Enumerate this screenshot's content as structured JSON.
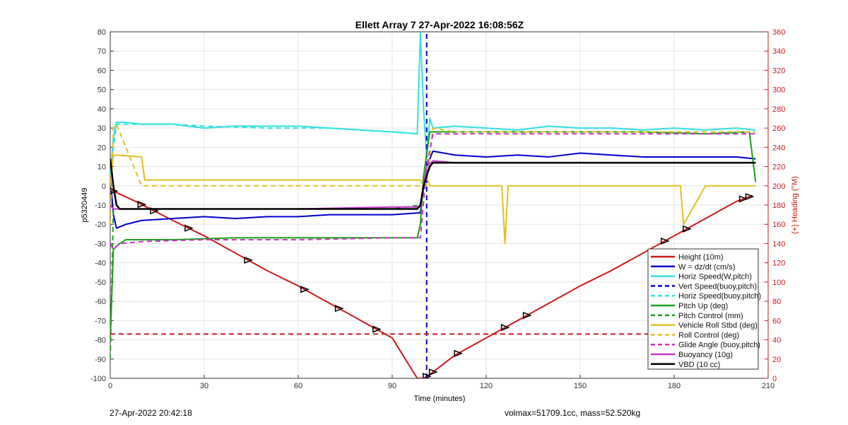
{
  "chart_data": {
    "type": "line",
    "title": "Ellett Array 7 27-Apr-2022 16:08:56Z",
    "xlabel": "Time (minutes)",
    "ylabel_left": "p5320449",
    "ylabel_right": "(+) Heading (°M)",
    "xlim": [
      0,
      210
    ],
    "ylim_left": [
      -100,
      80
    ],
    "ylim_right": [
      0,
      360
    ],
    "x_ticks": [
      "0",
      "30",
      "60",
      "90",
      "120",
      "150",
      "180",
      "210"
    ],
    "y_ticks_left": [
      "80",
      "70",
      "60",
      "50",
      "40",
      "30",
      "20",
      "10",
      "0",
      "-10",
      "-20",
      "-30",
      "-40",
      "-50",
      "-60",
      "-70",
      "-80",
      "-90",
      "-100"
    ],
    "y_ticks_right": [
      "360",
      "340",
      "320",
      "300",
      "280",
      "260",
      "240",
      "220",
      "200",
      "180",
      "160",
      "140",
      "120",
      "100",
      "80",
      "60",
      "40",
      "20",
      "0"
    ],
    "grid": true,
    "legend_position": "bottom-right",
    "series": [
      {
        "name": "Height (10m)",
        "color": "#cc1a1a",
        "style": "solid",
        "x": [
          0,
          8,
          20,
          30,
          40,
          50,
          60,
          70,
          80,
          90,
          98,
          100,
          102,
          110,
          120,
          130,
          140,
          150,
          160,
          170,
          180,
          190,
          200,
          205
        ],
        "y": [
          -2,
          -8,
          -18,
          -26,
          -35,
          -44,
          -52,
          -61,
          -70,
          -79,
          -100,
          -100,
          -98,
          -88,
          -79,
          -70,
          -61,
          -52,
          -44,
          -35,
          -26,
          -17,
          -8,
          -5
        ]
      },
      {
        "name": "W = dz/dt (cm/s)",
        "color": "#0000cc",
        "style": "solid",
        "x": [
          0,
          1,
          2,
          5,
          10,
          20,
          30,
          40,
          50,
          60,
          70,
          80,
          90,
          99,
          100,
          101,
          103,
          110,
          120,
          130,
          140,
          150,
          160,
          170,
          180,
          190,
          200,
          206
        ],
        "y": [
          5,
          -15,
          -22,
          -20,
          -18,
          -17,
          -16,
          -17,
          -16,
          -16,
          -15,
          -15,
          -15,
          -14,
          0,
          10,
          18,
          16,
          15,
          16,
          15,
          17,
          16,
          15,
          15,
          15,
          15,
          14
        ]
      },
      {
        "name": "Horiz Speed(W,pitch)",
        "color": "#33e0e0",
        "style": "solid",
        "x": [
          0,
          1,
          2,
          5,
          10,
          20,
          30,
          40,
          50,
          60,
          70,
          80,
          90,
          98,
          99,
          100,
          101,
          102,
          103,
          110,
          120,
          130,
          140,
          150,
          160,
          170,
          180,
          190,
          200,
          206
        ],
        "y": [
          5,
          25,
          33,
          33,
          32,
          32,
          30,
          31,
          31,
          31,
          30,
          29,
          28,
          27,
          80,
          40,
          15,
          35,
          30,
          31,
          30,
          29,
          31,
          30,
          30,
          29,
          30,
          29,
          30,
          29
        ]
      },
      {
        "name": "Vert Speed(buoy,pitch)",
        "color": "#0000cc",
        "style": "dashed",
        "x": [
          101,
          101
        ],
        "y": [
          -100,
          80
        ]
      },
      {
        "name": "Horiz Speed(buoy,pitch)",
        "color": "#33e0e0",
        "style": "dashed",
        "x": [
          0,
          1,
          2,
          10,
          20,
          30,
          50,
          70,
          90,
          99
        ],
        "y": [
          5,
          20,
          32,
          32,
          32,
          31,
          30,
          30,
          28,
          27
        ]
      },
      {
        "name": "Pitch Up (deg)",
        "color": "#1aa01a",
        "style": "solid",
        "x": [
          0,
          1,
          3,
          5,
          20,
          40,
          60,
          80,
          98,
          99,
          100,
          102,
          110,
          130,
          150,
          170,
          190,
          204,
          206
        ],
        "y": [
          -80,
          -33,
          -30,
          -28,
          -28,
          -27,
          -27,
          -27,
          -27,
          -20,
          5,
          28,
          28,
          28,
          28,
          28,
          27,
          28,
          2
        ]
      },
      {
        "name": "Pitch Control (mm)",
        "color": "#1aa01a",
        "style": "dashed",
        "x": [
          0,
          1,
          3,
          10,
          30,
          60,
          90,
          99,
          102,
          130,
          160,
          190,
          206
        ],
        "y": [
          -90,
          -12,
          -12,
          -12,
          -12,
          -12,
          -12,
          -10,
          12,
          12,
          12,
          12,
          12
        ]
      },
      {
        "name": "Vehicle Roll Stbd (deg)",
        "color": "#e0c020",
        "style": "solid",
        "x": [
          0,
          1,
          2,
          10,
          11,
          14,
          30,
          50,
          60,
          70,
          80,
          90,
          99,
          100,
          101,
          102,
          110,
          120,
          125,
          126,
          127,
          140,
          160,
          182,
          183,
          190,
          200,
          206
        ],
        "y": [
          0,
          16,
          16,
          15,
          3,
          3,
          3,
          3,
          3,
          3,
          3,
          3,
          3,
          0,
          5,
          0,
          0,
          0,
          0,
          -30,
          0,
          0,
          0,
          0,
          -20,
          0,
          0,
          0
        ]
      },
      {
        "name": "Roll Control (deg)",
        "color": "#e0c020",
        "style": "dashed",
        "x": [
          0,
          1,
          2,
          10,
          20,
          40,
          60,
          80,
          99,
          101,
          103,
          110,
          130,
          150,
          170,
          190,
          206
        ],
        "y": [
          -20,
          30,
          32,
          0,
          0,
          0,
          0,
          0,
          0,
          0,
          30,
          28,
          28,
          28,
          28,
          28,
          28
        ]
      },
      {
        "name": "Glide Angle (buoy,pitch)",
        "color": "#cc33cc",
        "style": "dashed",
        "x": [
          0,
          1,
          3,
          10,
          30,
          60,
          90,
          99,
          101,
          103,
          110,
          130,
          150,
          170,
          190,
          206
        ],
        "y": [
          -30,
          -33,
          -30,
          -29,
          -28,
          -28,
          -27,
          -27,
          10,
          27,
          27,
          27,
          27,
          27,
          27,
          27
        ]
      },
      {
        "name": "Buoyancy (10g)",
        "color": "#cc33cc",
        "style": "solid",
        "x": [
          0,
          1,
          3,
          10,
          30,
          60,
          90,
          99,
          100,
          101,
          103,
          110,
          130,
          150,
          170,
          190,
          206
        ],
        "y": [
          -10,
          -12,
          -12,
          -12,
          -12,
          -12,
          -11,
          -11,
          0,
          10,
          13,
          12,
          12,
          12,
          12,
          12,
          12
        ]
      },
      {
        "name": "VBD (10 cc)",
        "color": "#000000",
        "style": "solid",
        "x": [
          0,
          1,
          2,
          3,
          10,
          20,
          40,
          60,
          80,
          98,
          99,
          100,
          101,
          102,
          103,
          110,
          130,
          150,
          170,
          190,
          206
        ],
        "y": [
          14,
          0,
          -10,
          -12,
          -12,
          -12,
          -12,
          -12,
          -12,
          -12,
          -10,
          0,
          5,
          10,
          12,
          12,
          12,
          12,
          12,
          12,
          12
        ]
      },
      {
        "name": "",
        "color": "#cc1a1a",
        "style": "dashed",
        "x": [
          0,
          206
        ],
        "y": [
          -77,
          -77
        ]
      }
    ]
  },
  "footer": {
    "timestamp": "27-Apr-2022 20:42:18",
    "stats": "volmax=51709.1cc, mass=52.520kg"
  }
}
